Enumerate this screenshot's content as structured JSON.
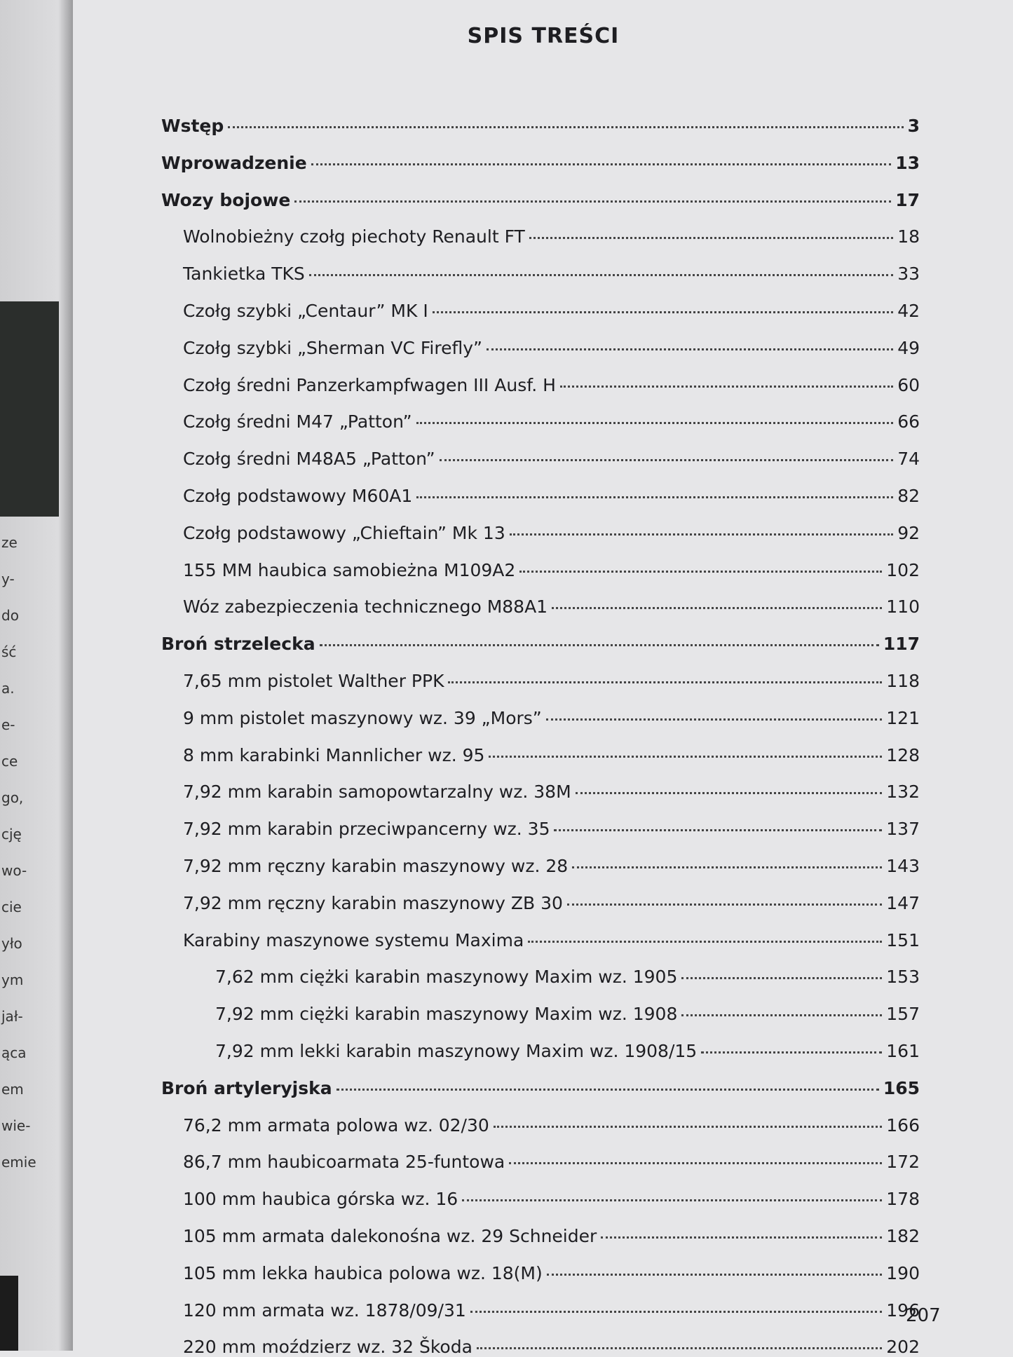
{
  "title": "SPIS TREŚCI",
  "entries": [
    {
      "label": "Wstęp",
      "page": 3,
      "level": 0
    },
    {
      "label": "Wprowadzenie",
      "page": 13,
      "level": 0
    },
    {
      "label": "Wozy bojowe",
      "page": 17,
      "level": 0
    },
    {
      "label": "Wolnobieżny czołg piechoty Renault FT",
      "page": 18,
      "level": 1
    },
    {
      "label": "Tankietka TKS",
      "page": 33,
      "level": 1
    },
    {
      "label": "Czołg szybki „Centaur” MK I",
      "page": 42,
      "level": 1
    },
    {
      "label": "Czołg szybki „Sherman VC Firefly”",
      "page": 49,
      "level": 1
    },
    {
      "label": "Czołg średni Panzerkampfwagen III Ausf. H",
      "page": 60,
      "level": 1
    },
    {
      "label": "Czołg średni M47 „Patton”",
      "page": 66,
      "level": 1
    },
    {
      "label": "Czołg średni M48A5 „Patton”",
      "page": 74,
      "level": 1
    },
    {
      "label": "Czołg podstawowy M60A1",
      "page": 82,
      "level": 1
    },
    {
      "label": "Czołg podstawowy „Chieftain” Mk 13",
      "page": 92,
      "level": 1
    },
    {
      "label": "155 MM haubica samobieżna M109A2",
      "page": 102,
      "level": 1
    },
    {
      "label": "Wóz zabezpieczenia technicznego M88A1",
      "page": 110,
      "level": 1
    },
    {
      "label": "Broń strzelecka",
      "page": 117,
      "level": 0
    },
    {
      "label": "7,65 mm pistolet Walther PPK",
      "page": 118,
      "level": 1
    },
    {
      "label": "9 mm pistolet maszynowy wz. 39 „Mors”",
      "page": 121,
      "level": 1
    },
    {
      "label": "8 mm karabinki Mannlicher wz. 95",
      "page": 128,
      "level": 1
    },
    {
      "label": "7,92 mm karabin samopowtarzalny wz. 38M",
      "page": 132,
      "level": 1
    },
    {
      "label": "7,92 mm karabin przeciwpancerny wz. 35",
      "page": 137,
      "level": 1
    },
    {
      "label": "7,92 mm ręczny karabin maszynowy wz. 28",
      "page": 143,
      "level": 1
    },
    {
      "label": "7,92 mm ręczny karabin maszynowy ZB 30",
      "page": 147,
      "level": 1
    },
    {
      "label": "Karabiny maszynowe systemu Maxima",
      "page": 151,
      "level": 1
    },
    {
      "label": "7,62 mm ciężki karabin maszynowy Maxim wz. 1905",
      "page": 153,
      "level": 2
    },
    {
      "label": "7,92 mm ciężki karabin maszynowy Maxim wz. 1908",
      "page": 157,
      "level": 2
    },
    {
      "label": "7,92 mm lekki karabin maszynowy Maxim wz. 1908/15",
      "page": 161,
      "level": 2
    },
    {
      "label": "Broń artyleryjska",
      "page": 165,
      "level": 0
    },
    {
      "label": "76,2 mm armata polowa wz. 02/30",
      "page": 166,
      "level": 1
    },
    {
      "label": "86,7 mm haubicoarmata 25-funtowa",
      "page": 172,
      "level": 1
    },
    {
      "label": "100 mm haubica górska wz. 16",
      "page": 178,
      "level": 1
    },
    {
      "label": "105 mm armata dalekonośna wz. 29 Schneider",
      "page": 182,
      "level": 1
    },
    {
      "label": "105 mm lekka haubica polowa wz. 18(M)",
      "page": 190,
      "level": 1
    },
    {
      "label": "120 mm armata wz. 1878/09/31",
      "page": 196,
      "level": 1
    },
    {
      "label": "220 mm moździerz wz. 32 Škoda",
      "page": 202,
      "level": 1
    }
  ],
  "page_number": 207,
  "facing_page_fragments": [
    "ze",
    "y-",
    "do",
    "ść",
    "a.",
    "e-",
    "ce",
    "go,",
    "cję",
    "wo-",
    "cie",
    "yło",
    "ym",
    "jał-",
    "ąca",
    "em",
    "wie-",
    "emie"
  ]
}
